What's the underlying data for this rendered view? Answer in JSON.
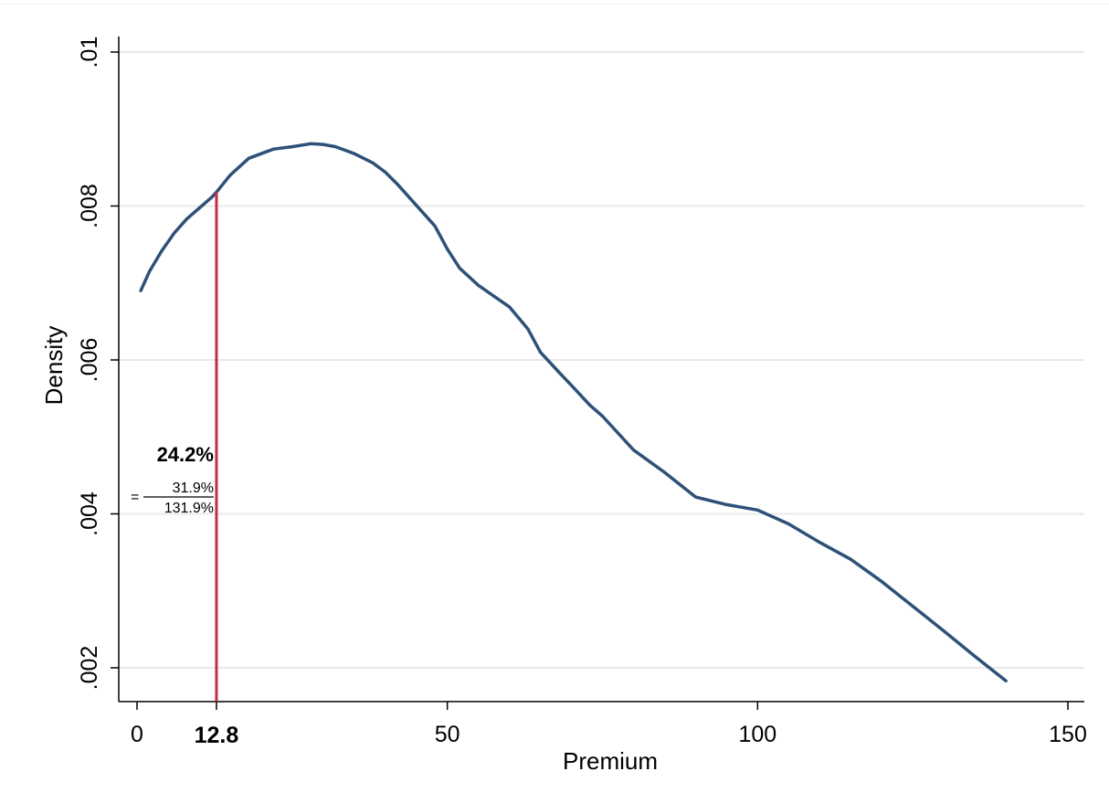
{
  "chart_data": {
    "type": "line",
    "xlabel": "Premium",
    "ylabel": "Density",
    "xlim": [
      -5,
      152
    ],
    "ylim": [
      0.0016,
      0.0102
    ],
    "x_ticks": [
      0,
      50,
      100,
      150
    ],
    "x_tick_labels": [
      "0",
      "50",
      "100",
      "150"
    ],
    "y_ticks": [
      0.002,
      0.004,
      0.006,
      0.008,
      0.01
    ],
    "y_tick_labels": [
      ".002",
      ".004",
      ".006",
      ".008",
      ".01"
    ],
    "grid": "horizontal",
    "series": [
      {
        "color": "#2e5178",
        "x": [
          0.6,
          2,
          4,
          6,
          8,
          10,
          12,
          12.8,
          15,
          18,
          20,
          22,
          25,
          28,
          30,
          32,
          35,
          38,
          40,
          42,
          45,
          48,
          50,
          52,
          55,
          60,
          63,
          65,
          68,
          70,
          73,
          75,
          80,
          85,
          90,
          95,
          100,
          105,
          110,
          115,
          120,
          125,
          130,
          135,
          140
        ],
        "y": [
          0.0069,
          0.00715,
          0.00742,
          0.00765,
          0.00783,
          0.00797,
          0.00811,
          0.00818,
          0.0084,
          0.00862,
          0.00868,
          0.00874,
          0.00877,
          0.00881,
          0.0088,
          0.00877,
          0.00868,
          0.00856,
          0.00844,
          0.00828,
          0.00801,
          0.00774,
          0.00744,
          0.00719,
          0.00697,
          0.00669,
          0.0064,
          0.0061,
          0.00584,
          0.00567,
          0.00541,
          0.00527,
          0.00483,
          0.00454,
          0.00422,
          0.00412,
          0.00405,
          0.00387,
          0.00363,
          0.00341,
          0.00312,
          0.0028,
          0.00248,
          0.00215,
          0.00183
        ]
      }
    ],
    "reference_line": {
      "x": 12.8,
      "y_top": 0.00818,
      "color": "#c62a49",
      "x_label": "12.8"
    },
    "annotation": {
      "value": "24.2%",
      "prefix": "=",
      "numerator": "31.9%",
      "denominator": "131.9%"
    }
  }
}
